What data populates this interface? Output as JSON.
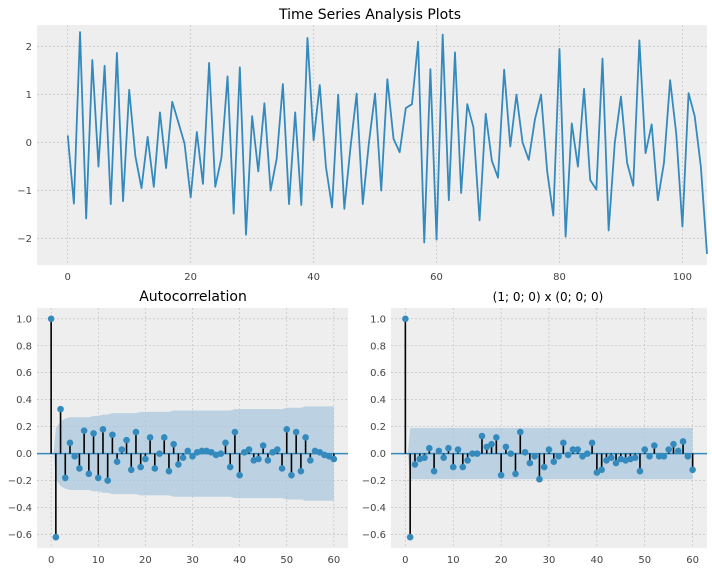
{
  "figure_title": "",
  "colors": {
    "line": "#348ABD",
    "stem": "#000000",
    "baseline": "#348ABD",
    "band": "#A6C6DD",
    "panel_bg": "#EEEEEE",
    "grid": "#BCBCBC"
  },
  "chart_data": [
    {
      "type": "line",
      "title": "Time Series Analysis Plots",
      "xlabel": "",
      "ylabel": "",
      "xlim": [
        -5,
        104
      ],
      "ylim": [
        -2.55,
        2.45
      ],
      "xticks": [
        0,
        20,
        40,
        60,
        80,
        100
      ],
      "yticks": [
        -2,
        -1,
        0,
        1,
        2
      ],
      "grid": true,
      "x_start": 0,
      "values": [
        0.15,
        -1.27,
        2.3,
        -1.58,
        1.72,
        -0.5,
        1.6,
        -1.28,
        1.87,
        -1.22,
        1.1,
        -0.28,
        -0.95,
        0.12,
        -0.92,
        0.63,
        -0.53,
        0.85,
        0.42,
        -0.02,
        -1.14,
        0.22,
        -0.86,
        1.66,
        -0.92,
        -0.32,
        1.38,
        -1.48,
        1.57,
        -1.92,
        0.55,
        -0.6,
        0.82,
        -1.0,
        -0.33,
        1.22,
        -1.28,
        0.63,
        -1.3,
        2.18,
        0.05,
        1.2,
        -0.5,
        -1.35,
        1.0,
        -1.38,
        -0.1,
        1.02,
        -1.28,
        0.0,
        1.02,
        -1.0,
        1.32,
        0.08,
        -0.2,
        0.72,
        0.8,
        2.1,
        -2.08,
        1.53,
        -2.02,
        2.25,
        -1.2,
        1.88,
        -1.05,
        0.8,
        0.32,
        -1.62,
        0.6,
        -0.38,
        -0.73,
        1.52,
        -0.08,
        1.0,
        0.0,
        -0.36,
        0.48,
        1.0,
        -0.6,
        -1.52,
        1.95,
        -1.96,
        0.4,
        -0.5,
        1.12,
        -0.78,
        -0.98,
        1.75,
        -1.83,
        0.0,
        0.96,
        -0.42,
        -0.9,
        2.13,
        -0.22,
        0.38,
        -1.2,
        -0.42,
        1.3,
        0.18,
        -1.75,
        1.03,
        0.55,
        -0.5,
        -2.32
      ]
    },
    {
      "type": "stem",
      "title": "Autocorrelation",
      "xlabel": "",
      "ylabel": "",
      "xlim": [
        -3,
        63
      ],
      "ylim": [
        -0.7,
        1.08
      ],
      "xticks": [
        0,
        10,
        20,
        30,
        40,
        50,
        60
      ],
      "yticks": [
        -0.6,
        -0.4,
        -0.2,
        0.0,
        0.2,
        0.4,
        0.6,
        0.8,
        1.0
      ],
      "grid": true,
      "x_start": 0,
      "values": [
        1.0,
        -0.62,
        0.33,
        -0.18,
        0.08,
        -0.02,
        -0.11,
        0.17,
        -0.15,
        0.15,
        -0.18,
        0.18,
        -0.2,
        0.14,
        -0.06,
        0.03,
        0.1,
        -0.12,
        0.16,
        -0.1,
        -0.04,
        0.12,
        -0.11,
        0.0,
        0.12,
        -0.13,
        0.07,
        -0.08,
        -0.03,
        0.02,
        -0.02,
        0.01,
        0.02,
        0.02,
        0.01,
        -0.01,
        0.0,
        0.08,
        -0.1,
        0.16,
        -0.16,
        0.01,
        0.03,
        -0.05,
        -0.04,
        0.06,
        -0.05,
        0.01,
        0.03,
        -0.11,
        0.18,
        -0.16,
        0.16,
        -0.13,
        0.12,
        -0.05,
        0.02,
        0.01,
        -0.01,
        -0.02,
        -0.04
      ],
      "confint_upper": [
        0.0,
        0.19,
        0.24,
        0.26,
        0.27,
        0.27,
        0.27,
        0.27,
        0.27,
        0.28,
        0.28,
        0.29,
        0.29,
        0.3,
        0.3,
        0.3,
        0.3,
        0.3,
        0.3,
        0.31,
        0.31,
        0.31,
        0.31,
        0.31,
        0.31,
        0.31,
        0.32,
        0.32,
        0.32,
        0.32,
        0.32,
        0.32,
        0.32,
        0.32,
        0.32,
        0.32,
        0.32,
        0.32,
        0.32,
        0.33,
        0.33,
        0.33,
        0.33,
        0.33,
        0.33,
        0.33,
        0.33,
        0.33,
        0.33,
        0.33,
        0.34,
        0.34,
        0.34,
        0.34,
        0.35,
        0.35,
        0.35,
        0.35,
        0.35,
        0.35,
        0.35
      ]
    },
    {
      "type": "stem",
      "title": "(1; 0; 0) x (0; 0; 0)",
      "xlabel": "",
      "ylabel": "",
      "xlim": [
        -3,
        63
      ],
      "ylim": [
        -0.7,
        1.08
      ],
      "xticks": [
        0,
        10,
        20,
        30,
        40,
        50,
        60
      ],
      "yticks": [
        -0.6,
        -0.4,
        -0.2,
        0.0,
        0.2,
        0.4,
        0.6,
        0.8,
        1.0
      ],
      "grid": true,
      "x_start": 0,
      "values": [
        1.0,
        -0.62,
        -0.08,
        -0.04,
        -0.03,
        0.04,
        -0.13,
        0.02,
        -0.03,
        0.04,
        -0.1,
        0.03,
        -0.1,
        -0.05,
        0.0,
        0.0,
        0.13,
        0.05,
        0.07,
        0.12,
        -0.16,
        0.05,
        0.0,
        -0.15,
        0.16,
        0.01,
        -0.07,
        -0.02,
        -0.19,
        -0.1,
        0.03,
        -0.06,
        -0.02,
        0.08,
        -0.01,
        0.03,
        0.03,
        -0.02,
        0.0,
        0.08,
        -0.14,
        -0.12,
        -0.05,
        -0.03,
        -0.07,
        -0.04,
        -0.05,
        -0.04,
        -0.03,
        -0.13,
        0.03,
        -0.02,
        0.06,
        -0.02,
        -0.02,
        0.03,
        0.07,
        0.02,
        0.09,
        -0.02,
        -0.12
      ],
      "confint_upper": [
        0.0,
        0.19,
        0.19,
        0.19,
        0.19,
        0.19,
        0.19,
        0.19,
        0.19,
        0.19,
        0.19,
        0.19,
        0.19,
        0.19,
        0.19,
        0.19,
        0.19,
        0.19,
        0.19,
        0.19,
        0.19,
        0.19,
        0.19,
        0.19,
        0.19,
        0.19,
        0.19,
        0.19,
        0.19,
        0.19,
        0.19,
        0.19,
        0.19,
        0.19,
        0.19,
        0.19,
        0.19,
        0.19,
        0.19,
        0.19,
        0.19,
        0.19,
        0.19,
        0.19,
        0.19,
        0.19,
        0.19,
        0.19,
        0.19,
        0.19,
        0.19,
        0.19,
        0.19,
        0.19,
        0.19,
        0.19,
        0.19,
        0.19,
        0.19,
        0.19,
        0.19
      ]
    }
  ]
}
